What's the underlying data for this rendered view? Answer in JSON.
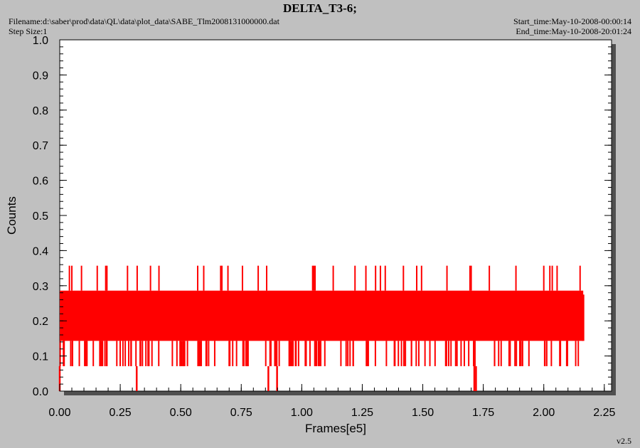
{
  "header": {
    "title": "DELTA_T3-6;",
    "filename": "Filename:d:\\saber\\prod\\data\\QL\\data\\plot_data\\SABE_Tlm2008131000000.dat",
    "step_size": "Step Size:1",
    "start_time": "Start_time:May-10-2008-00:00:14",
    "end_time": "End_time:May-10-2008-20:01:24",
    "version": "v2.5"
  },
  "colors": {
    "background": "#c0c0c0",
    "plot_area": "#ffffff",
    "series": "#ff0000",
    "shadow": "#505050"
  },
  "chart_data": {
    "type": "line",
    "title": "DELTA_T3-6;",
    "xlabel": "Frames[e5]",
    "ylabel": "Counts",
    "xlim": [
      0,
      2.28
    ],
    "ylim": [
      0,
      1.0
    ],
    "x_ticks": [
      "0.00",
      "0.25",
      "0.50",
      "0.75",
      "1.00",
      "1.25",
      "1.50",
      "1.75",
      "2.00",
      "2.25"
    ],
    "y_ticks": [
      "0.0",
      "0.1",
      "0.2",
      "0.3",
      "0.4",
      "0.5",
      "0.6",
      "0.7",
      "0.8",
      "0.9",
      "1.0"
    ],
    "grid": false,
    "series": [
      {
        "color": "#ff0000",
        "x_range": [
          0,
          2.163
        ],
        "dense_band": [
          0.143,
          0.286
        ],
        "frequent_low_level": 0.071,
        "occasional_high_level": 0.357,
        "zero_dips_x": [
          0.0,
          0.318,
          0.862,
          0.898,
          1.713,
          1.72
        ],
        "high_spikes_x": [
          0.04,
          0.05,
          0.09,
          0.155,
          0.19,
          0.195,
          0.28,
          0.32,
          0.375,
          0.41,
          0.57,
          0.595,
          0.665,
          0.67,
          0.695,
          0.755,
          0.82,
          0.855,
          1.045,
          1.05,
          1.055,
          1.13,
          1.22,
          1.265,
          1.305,
          1.325,
          1.345,
          1.42,
          1.475,
          1.495,
          1.6,
          1.695,
          1.7,
          1.775,
          1.885,
          2.0,
          2.025,
          2.035,
          2.055,
          2.15
        ],
        "final_point": [
          2.163,
          0.214
        ]
      }
    ]
  }
}
